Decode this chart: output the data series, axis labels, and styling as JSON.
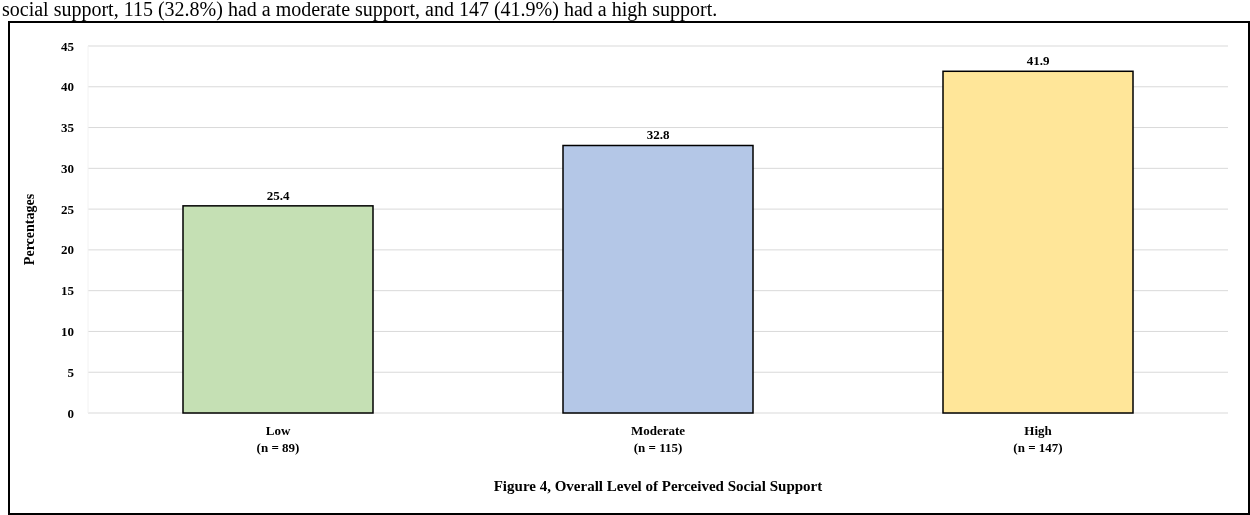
{
  "chart_data": {
    "type": "bar",
    "title": "Figure 4, Overall Level of Perceived Social Support",
    "ylabel": "Percentages",
    "categories": [
      "Low\n(n = 89)",
      "Moderate\n(n = 115)",
      "High\n(n = 147)"
    ],
    "values": [
      25.4,
      32.8,
      41.9
    ],
    "colors": [
      "#c5e0b4",
      "#b4c7e7",
      "#ffe699"
    ],
    "ylim": [
      0,
      45
    ],
    "yticks": [
      0,
      5,
      10,
      15,
      20,
      25,
      30,
      35,
      40,
      45
    ],
    "grid": "y",
    "data_labels": true,
    "annotations": [
      "social support, 115 (32.8%) had a moderate support, and 147 (41.9%) had a high support."
    ]
  }
}
